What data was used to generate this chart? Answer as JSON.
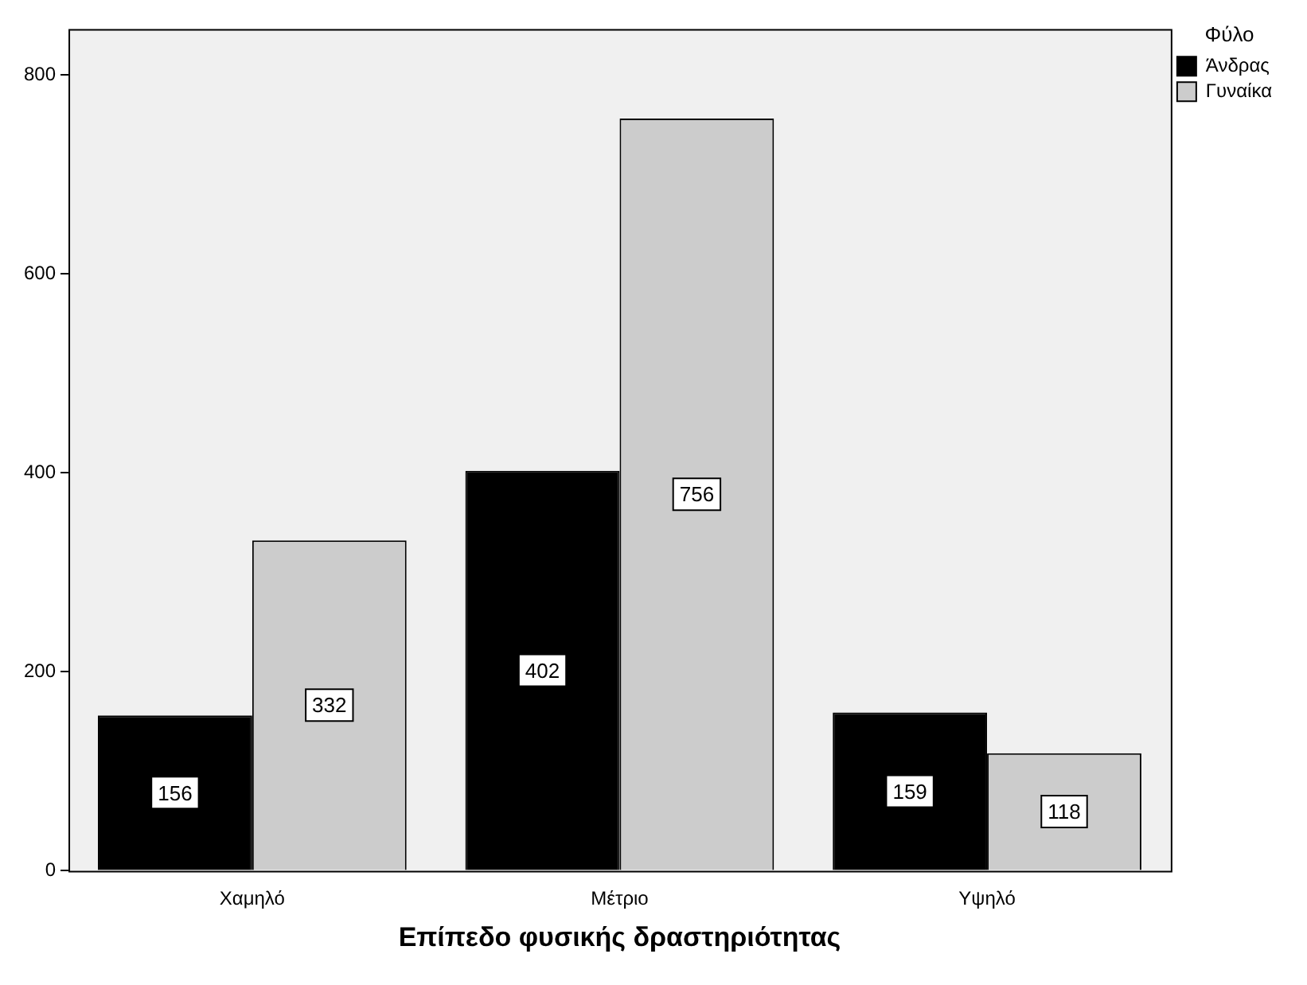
{
  "chart_data": {
    "type": "bar",
    "xlabel": "Επίπεδο φυσικής δραστηριότητας",
    "legend_title": "Φύλο",
    "categories": [
      "Χαμηλό",
      "Μέτριο",
      "Υψηλό"
    ],
    "series": [
      {
        "name": "Άνδρας",
        "color": "#000000",
        "values": [
          156,
          402,
          159
        ]
      },
      {
        "name": "Γυναίκα",
        "color": "#cccccc",
        "values": [
          332,
          756,
          118
        ]
      }
    ],
    "ylim": [
      0,
      846
    ],
    "yticks": [
      0,
      200,
      400,
      600,
      800
    ],
    "grid": false,
    "legend": "top right",
    "data_labels": true
  }
}
